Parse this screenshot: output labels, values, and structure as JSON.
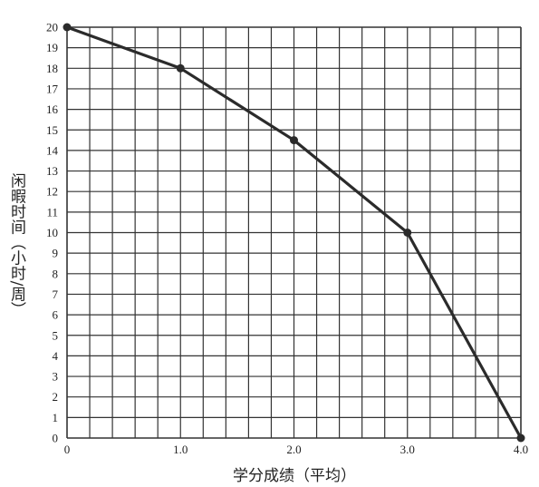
{
  "chart_data": {
    "type": "line",
    "title": "",
    "xlabel": "学分成绩（平均）",
    "ylabel": "闲暇时间（小时/周）",
    "xlim": [
      0,
      4.0
    ],
    "ylim": [
      0,
      20
    ],
    "grid": true,
    "x_ticks": [
      "0",
      "1.0",
      "2.0",
      "3.0",
      "4.0"
    ],
    "y_ticks": [
      "0",
      "1",
      "2",
      "3",
      "4",
      "5",
      "6",
      "7",
      "8",
      "9",
      "10",
      "11",
      "12",
      "13",
      "14",
      "15",
      "16",
      "17",
      "18",
      "19",
      "20"
    ],
    "series": [
      {
        "x": [
          0,
          1.0,
          2.0,
          3.0,
          4.0
        ],
        "y": [
          20,
          18,
          14.5,
          10,
          0
        ]
      }
    ],
    "colors": {
      "line": "#2b2b2b",
      "grid": "#333333",
      "text": "#222222"
    }
  }
}
